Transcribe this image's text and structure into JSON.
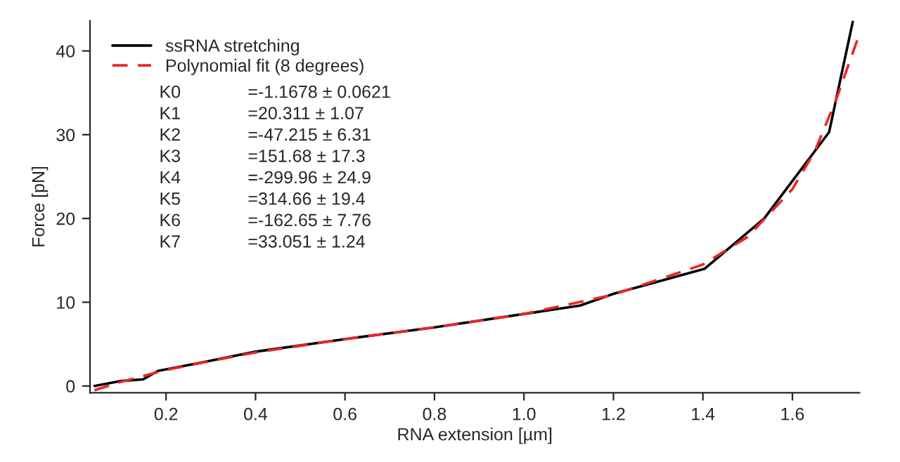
{
  "chart_data": {
    "type": "line",
    "xlabel": "RNA extension [µm]",
    "ylabel": "Force [pN]",
    "xlim": [
      0.03,
      1.75
    ],
    "ylim": [
      -0.8,
      43.6
    ],
    "xticks": [
      0.2,
      0.4,
      0.6,
      0.8,
      {
        "value": 1.0,
        "label": "1.0"
      },
      1.2,
      1.4,
      1.6
    ],
    "yticks": [
      0,
      10,
      20,
      30,
      40
    ],
    "grid": false,
    "legend": "top left",
    "series": [
      {
        "name": "ssRNA stretching",
        "color": "#000000",
        "line_style": "solid",
        "x": [
          0.04,
          0.1,
          0.149,
          0.182,
          0.27,
          0.4,
          0.6,
          0.8,
          1.0,
          1.125,
          1.2,
          1.404,
          1.537,
          1.682,
          1.735
        ],
        "values": [
          0.0,
          0.6,
          0.8,
          1.8,
          2.7,
          4.1,
          5.6,
          7.0,
          8.6,
          9.6,
          11.0,
          14.0,
          20.0,
          30.3,
          43.5
        ]
      },
      {
        "name": "Polynomial fit (8 degrees)",
        "color": "#e8262b",
        "line_style": "dashed",
        "x": [
          0.04,
          0.1,
          0.2,
          0.3,
          0.4,
          0.6,
          0.8,
          1.0,
          1.2,
          1.4,
          1.5,
          1.6,
          1.65,
          1.7,
          1.745
        ],
        "values": [
          -0.5,
          0.5,
          1.9,
          3.0,
          4.0,
          5.6,
          7.0,
          8.6,
          10.9,
          14.5,
          17.8,
          23.5,
          28.0,
          34.5,
          41.3
        ]
      }
    ],
    "annotations": [
      "K0\t=-1.1678 ± 0.0621",
      "K1\t=20.311 ± 1.07",
      "K2\t=-47.215 ± 6.31",
      "K3\t=151.68 ± 17.3",
      "K4\t=-299.96 ± 24.9",
      "K5\t=314.66 ± 19.4",
      "K6\t=-162.65 ± 7.76",
      "K7\t=33.051 ± 1.24"
    ]
  }
}
